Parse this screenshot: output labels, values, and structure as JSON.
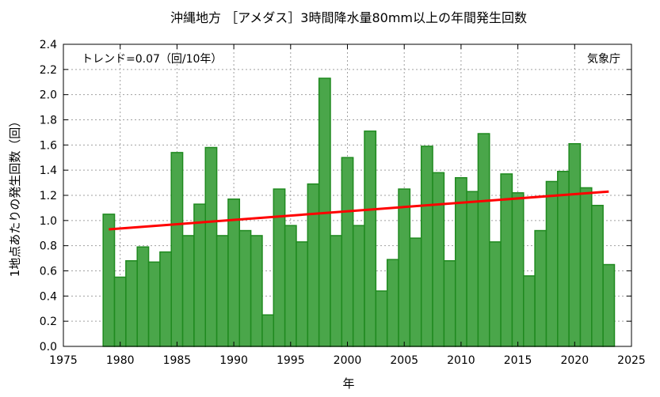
{
  "chart_data": {
    "type": "bar",
    "title": "沖縄地方 ［アメダス］3時間降水量80mm以上の年間発生回数",
    "xlabel": "年",
    "ylabel": "1地点あたりの発生回数（回）",
    "annotation_trend": "トレンド=0.07（回/10年）",
    "annotation_source": "気象庁",
    "xlim": [
      1975,
      2025
    ],
    "ylim": [
      0,
      2.4
    ],
    "x_ticks": [
      1975,
      1980,
      1985,
      1990,
      1995,
      2000,
      2005,
      2010,
      2015,
      2020,
      2025
    ],
    "y_ticks": [
      0.0,
      0.2,
      0.4,
      0.6,
      0.8,
      1.0,
      1.2,
      1.4,
      1.6,
      1.8,
      2.0,
      2.2,
      2.4
    ],
    "grid": true,
    "categories": [
      1979,
      1980,
      1981,
      1982,
      1983,
      1984,
      1985,
      1986,
      1987,
      1988,
      1989,
      1990,
      1991,
      1992,
      1993,
      1994,
      1995,
      1996,
      1997,
      1998,
      1999,
      2000,
      2001,
      2002,
      2003,
      2004,
      2005,
      2006,
      2007,
      2008,
      2009,
      2010,
      2011,
      2012,
      2013,
      2014,
      2015,
      2016,
      2017,
      2018,
      2019,
      2020,
      2021,
      2022,
      2023
    ],
    "values": [
      1.05,
      0.55,
      0.68,
      0.79,
      0.67,
      0.75,
      1.54,
      0.88,
      1.13,
      1.58,
      0.88,
      1.17,
      0.92,
      0.88,
      0.25,
      1.25,
      0.96,
      0.83,
      1.29,
      2.13,
      0.88,
      1.5,
      0.96,
      1.71,
      0.44,
      0.69,
      1.25,
      0.86,
      1.59,
      1.38,
      0.68,
      1.34,
      1.23,
      1.69,
      0.83,
      1.37,
      1.22,
      0.56,
      0.92,
      1.31,
      1.39,
      1.61,
      1.26,
      1.12,
      0.65
    ],
    "trend_line": {
      "x": [
        1979,
        2023
      ],
      "y": [
        0.93,
        1.23
      ]
    },
    "colors": {
      "bar_fill": "#4aa64a",
      "bar_stroke": "#1f8a1f",
      "trend": "#ff0000",
      "grid": "#a0a0a0"
    }
  }
}
